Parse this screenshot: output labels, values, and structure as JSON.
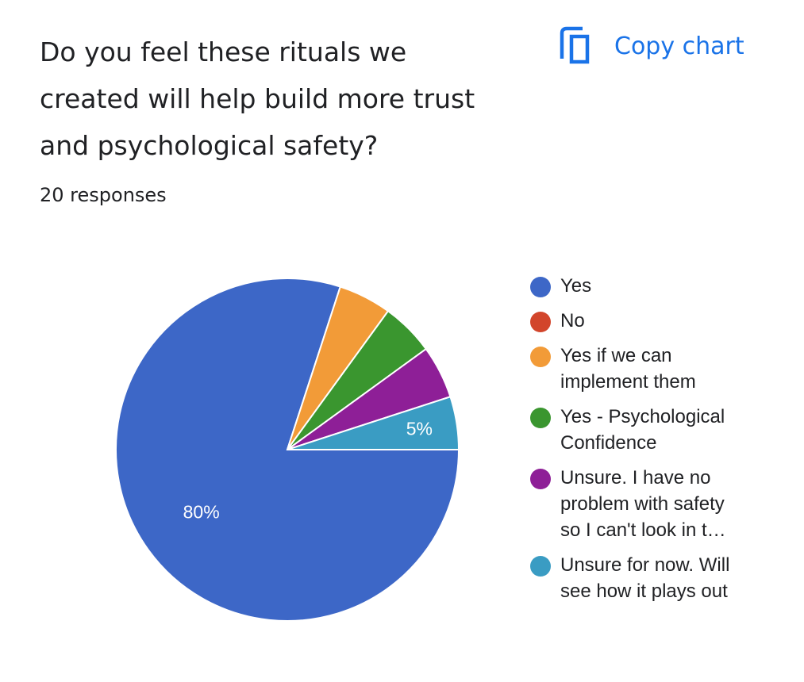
{
  "header": {
    "title_lines": [
      "Do you feel these rituals we",
      "created will help build more trust",
      "and psychological safety?"
    ],
    "response_count": "20 responses",
    "copy_chart_label": "Copy chart",
    "copy_icon": "copy-icon"
  },
  "chart_data": {
    "type": "pie",
    "categories": [
      "Yes",
      "No",
      "Yes if we can implement them",
      "Yes - Psychological Confidence",
      "Unsure. I have no problem with safety so I can't look in t…",
      "Unsure for now. Will see how it plays out"
    ],
    "legend_lines": [
      [
        "Yes"
      ],
      [
        "No"
      ],
      [
        "Yes if we can",
        "implement them"
      ],
      [
        "Yes - Psychological",
        "Confidence"
      ],
      [
        "Unsure. I have no",
        "problem with safety",
        "so I can't look in t…"
      ],
      [
        "Unsure for now. Will",
        "see how it plays out"
      ]
    ],
    "values": [
      16,
      0,
      1,
      1,
      1,
      1
    ],
    "percent_labels": [
      "80%",
      "",
      "",
      "",
      "",
      "5%"
    ],
    "colors": [
      "#3d67c7",
      "#d2452b",
      "#f29b38",
      "#3a962f",
      "#8e1f97",
      "#3a9cc3"
    ],
    "legend_position": "right"
  }
}
